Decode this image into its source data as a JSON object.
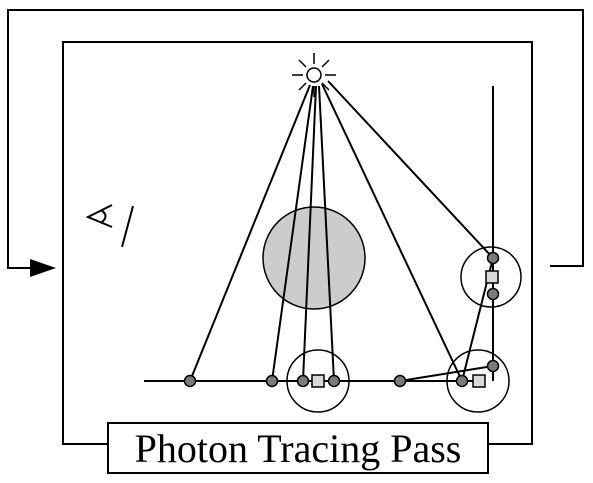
{
  "diagram": {
    "title": "Photon Tracing Pass",
    "icons": [
      "light-source-icon",
      "eye-icon",
      "feedback-arrow-icon"
    ],
    "colors": {
      "line": "#000000",
      "photon_dot": "#7a7a7a",
      "sphere_fill": "#cccccc",
      "kd_square": "#d9d9d9",
      "background": "#ffffff"
    }
  }
}
